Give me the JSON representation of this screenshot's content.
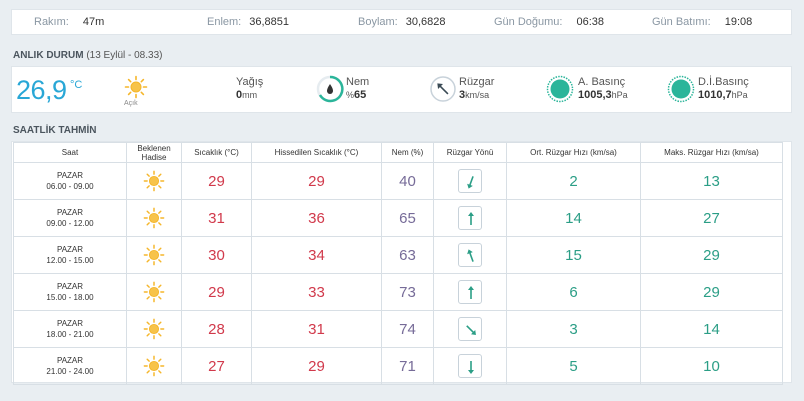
{
  "station": {
    "rakim": {
      "label": "Rakım:",
      "value": "47m"
    },
    "enlem": {
      "label": "Enlem:",
      "value": "36,8851"
    },
    "boylam": {
      "label": "Boylam:",
      "value": "30,6828"
    },
    "gun_dogumu": {
      "label": "Gün Doğumu:",
      "value": "06:38"
    },
    "gun_batimi": {
      "label": "Gün Batımı:",
      "value": "19:08"
    }
  },
  "current": {
    "title": "ANLIK DURUM",
    "subtitle": "(13 Eylül - 08.33)",
    "temperature": "26,9",
    "temp_unit": "°C",
    "condition": "Açık",
    "condition_icon": "sun-icon",
    "yagis": {
      "label": "Yağış",
      "value": "0",
      "unit": "mm"
    },
    "nem": {
      "label": "Nem",
      "prefix": "%",
      "value": "65"
    },
    "ruzgar": {
      "label": "Rüzgar",
      "value": "3",
      "unit": "km/sa"
    },
    "a_basinc": {
      "label": "A. Basınç",
      "value": "1005,3",
      "unit": "hPa"
    },
    "di_basinc": {
      "label": "D.İ.Basınç",
      "value": "1010,7",
      "unit": "hPa"
    },
    "colors": {
      "accent": "#29a7d6",
      "teal": "#2bb59a"
    }
  },
  "hourly": {
    "title": "SAATLİK TAHMİN",
    "headers": {
      "saat": "Saat",
      "hadise_1": "Beklenen",
      "hadise_2": "Hadise",
      "sicaklik": "Sıcaklık (°C)",
      "hissedilen": "Hissedilen Sıcaklık (°C)",
      "nem": "Nem (%)",
      "yon": "Rüzgar Yönü",
      "ort": "Ort. Rüzgar Hızı (km/sa)",
      "maks": "Maks. Rüzgar Hızı (km/sa)"
    },
    "rows": [
      {
        "day": "PAZAR",
        "time": "06.00 - 09.00",
        "icon": "sun-icon",
        "temp": "29",
        "feels": "29",
        "humidity": "40",
        "wind_dir_deg": 200,
        "avg_wind": "2",
        "max_wind": "13"
      },
      {
        "day": "PAZAR",
        "time": "09.00 - 12.00",
        "icon": "sun-icon",
        "temp": "31",
        "feels": "36",
        "humidity": "65",
        "wind_dir_deg": 0,
        "avg_wind": "14",
        "max_wind": "27"
      },
      {
        "day": "PAZAR",
        "time": "12.00 - 15.00",
        "icon": "sun-icon",
        "temp": "30",
        "feels": "34",
        "humidity": "63",
        "wind_dir_deg": 340,
        "avg_wind": "15",
        "max_wind": "29"
      },
      {
        "day": "PAZAR",
        "time": "15.00 - 18.00",
        "icon": "sun-icon",
        "temp": "29",
        "feels": "33",
        "humidity": "73",
        "wind_dir_deg": 0,
        "avg_wind": "6",
        "max_wind": "29"
      },
      {
        "day": "PAZAR",
        "time": "18.00 - 21.00",
        "icon": "sun-icon",
        "temp": "28",
        "feels": "31",
        "humidity": "74",
        "wind_dir_deg": 135,
        "avg_wind": "3",
        "max_wind": "14"
      },
      {
        "day": "PAZAR",
        "time": "21.00 - 24.00",
        "icon": "sun-icon",
        "temp": "27",
        "feels": "29",
        "humidity": "71",
        "wind_dir_deg": 180,
        "avg_wind": "5",
        "max_wind": "10"
      }
    ]
  }
}
